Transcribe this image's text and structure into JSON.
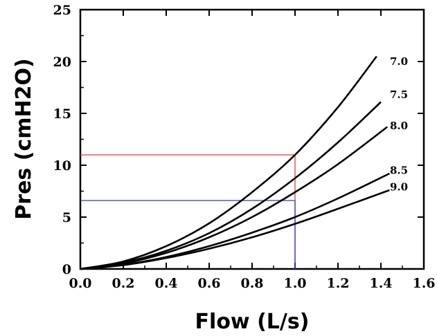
{
  "chart_data": {
    "type": "line",
    "title": "",
    "xlabel": "Flow (L/s)",
    "ylabel": "Pres (cmH2O)",
    "xlim": [
      0,
      1.6
    ],
    "ylim": [
      0,
      25
    ],
    "x_ticks": [
      "0.0",
      "0.2",
      "0.4",
      "0.6",
      "0.8",
      "1.0",
      "1.2",
      "1.4",
      "1.6"
    ],
    "y_ticks": [
      "0",
      "5",
      "10",
      "15",
      "20",
      "25"
    ],
    "grid": false,
    "legend": "none",
    "series": [
      {
        "label": "7.0",
        "x": [
          0,
          0.2,
          0.4,
          0.6,
          0.8,
          1.0,
          1.2,
          1.38
        ],
        "y": [
          0,
          0.72,
          2.2,
          4.4,
          7.4,
          11.0,
          15.6,
          20.5
        ]
      },
      {
        "label": "7.5",
        "x": [
          0,
          0.2,
          0.4,
          0.6,
          0.8,
          1.0,
          1.2,
          1.4
        ],
        "y": [
          0,
          0.6,
          1.75,
          3.45,
          5.8,
          8.75,
          12.2,
          16.1
        ]
      },
      {
        "label": "8.0",
        "x": [
          0,
          0.2,
          0.4,
          0.6,
          0.8,
          1.0,
          1.2,
          1.43
        ],
        "y": [
          0,
          0.52,
          1.55,
          3.05,
          5.0,
          7.4,
          10.1,
          13.7
        ]
      },
      {
        "label": "8.5",
        "x": [
          0,
          0.2,
          0.4,
          0.6,
          0.8,
          1.0,
          1.2,
          1.44
        ],
        "y": [
          0,
          0.4,
          1.15,
          2.2,
          3.5,
          5.0,
          6.8,
          9.2
        ]
      },
      {
        "label": "9.0",
        "x": [
          0,
          0.2,
          0.4,
          0.6,
          0.8,
          1.0,
          1.2,
          1.44
        ],
        "y": [
          0,
          0.37,
          1.05,
          1.95,
          3.05,
          4.35,
          5.8,
          7.6
        ]
      }
    ],
    "reference_lines": [
      {
        "color": "#e8393a",
        "x": 1.0,
        "y": 11.0
      },
      {
        "color": "#2b35e0",
        "x": 1.0,
        "y": 6.6
      }
    ]
  }
}
